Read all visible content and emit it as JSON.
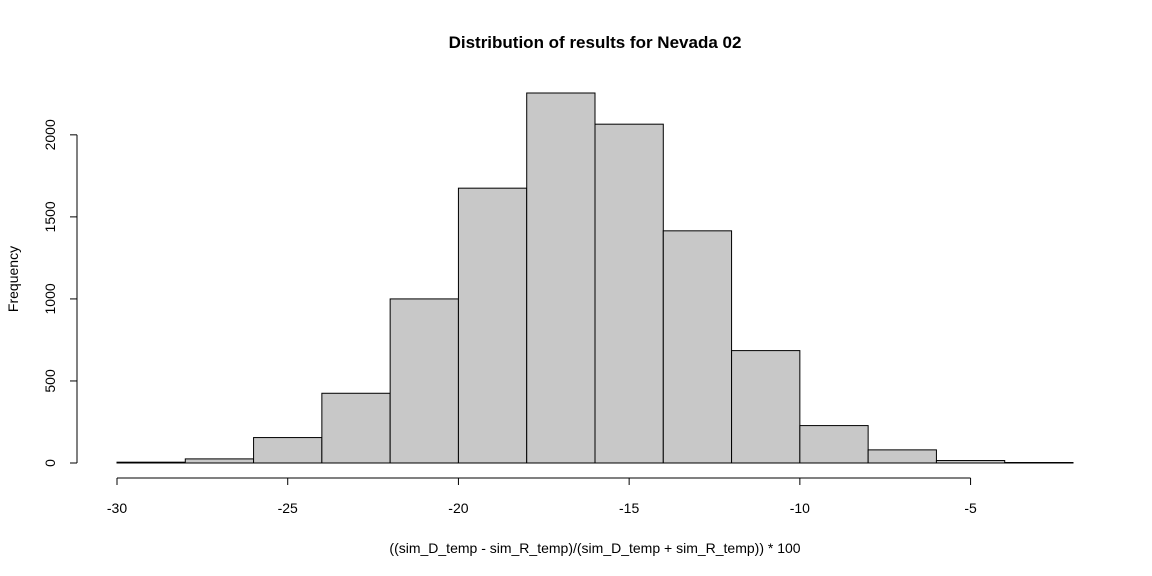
{
  "chart_data": {
    "type": "bar",
    "title": "Distribution of results for Nevada 02",
    "xlabel": "((sim_D_temp - sim_R_temp)/(sim_D_temp + sim_R_temp)) * 100",
    "ylabel": "Frequency",
    "bin_edges": [
      -30,
      -28,
      -26,
      -24,
      -22,
      -20,
      -18,
      -16,
      -14,
      -12,
      -10,
      -8,
      -6,
      -4,
      -2
    ],
    "values": [
      5,
      25,
      155,
      425,
      1000,
      1675,
      2255,
      2065,
      1415,
      685,
      228,
      80,
      15,
      3
    ],
    "xlim": [
      -30,
      -2
    ],
    "ylim": [
      0,
      2255
    ],
    "x_ticks": [
      -30,
      -25,
      -20,
      -15,
      -10,
      -5
    ],
    "y_ticks": [
      0,
      500,
      1000,
      1500,
      2000
    ],
    "bar_fill": "#c8c8c8",
    "bar_stroke": "#000000",
    "grid": false,
    "legend": "none"
  }
}
